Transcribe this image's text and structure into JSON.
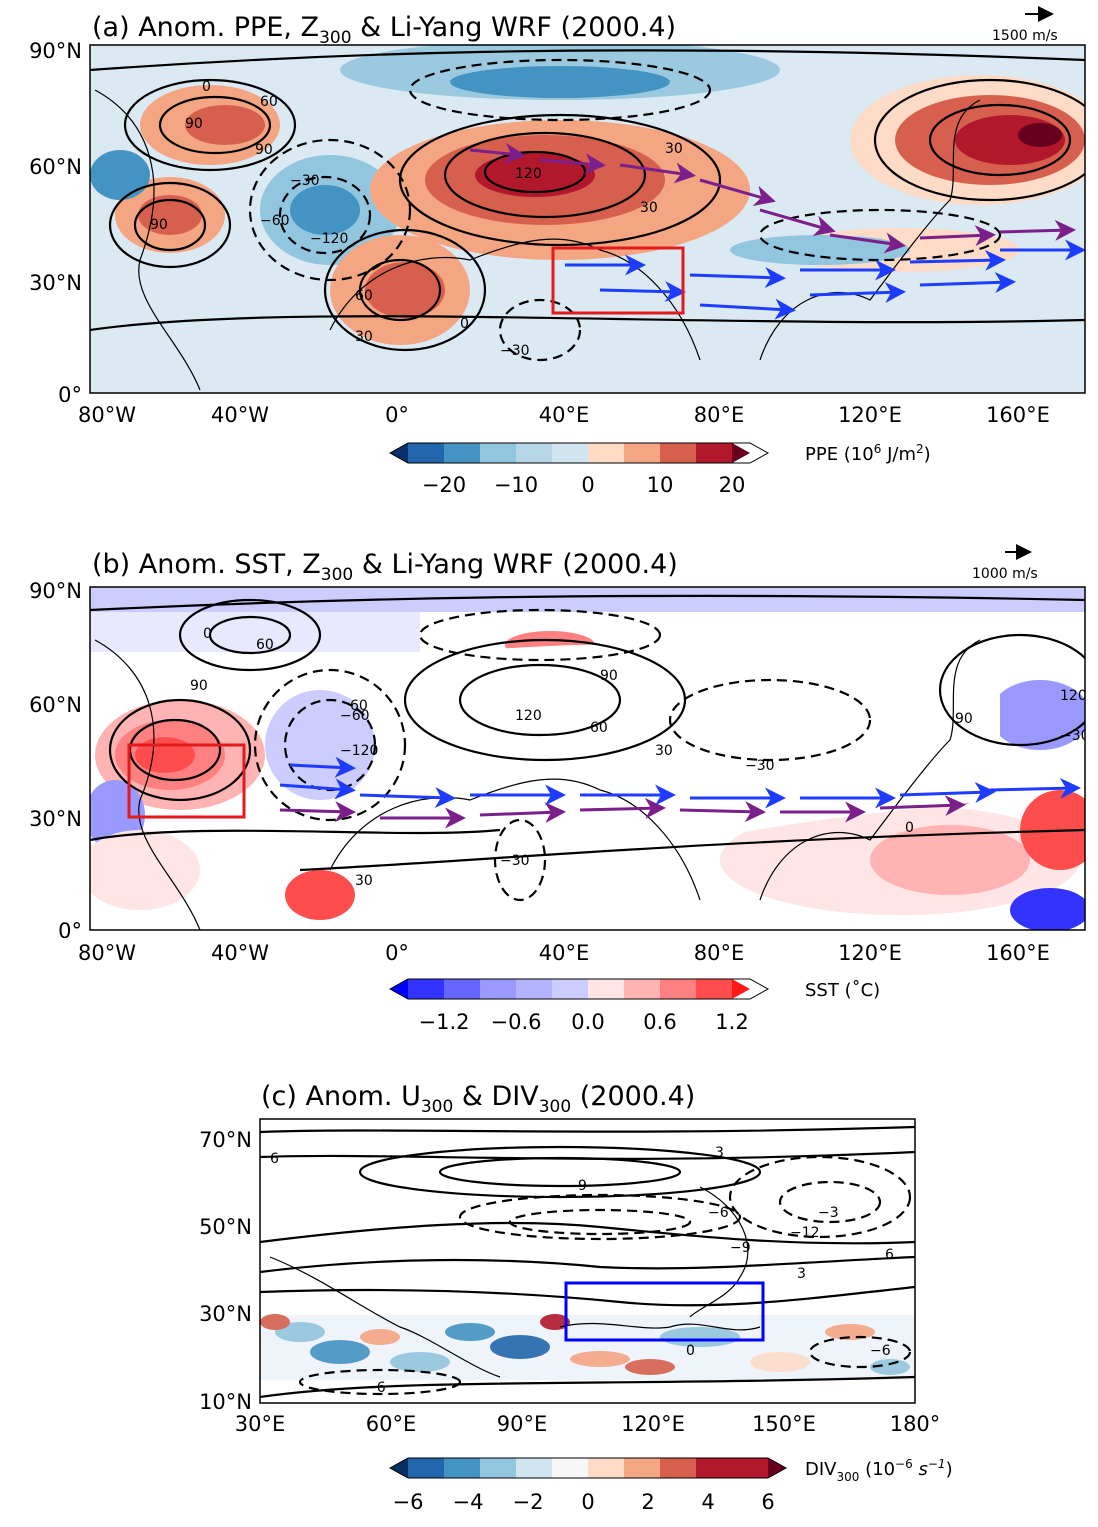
{
  "panels": [
    {
      "id": "a",
      "title": "(a) Anom. PPE, Z",
      "title_sub": "300",
      "title_rest": " & Li-Yang WRF (2000.4)",
      "ref_vector": "1500 m/s",
      "x_ticks": [
        "80°W",
        "40°W",
        "0°",
        "40°E",
        "80°E",
        "120°E",
        "160°E"
      ],
      "y_ticks": [
        "90°N",
        "60°N",
        "30°N",
        "0°"
      ],
      "box_color": "#e31a1c",
      "contour_labels": [
        "0",
        "30",
        "30",
        "60",
        "90",
        "90",
        "90",
        "120",
        "−30",
        "−60",
        "−120",
        "60",
        "30",
        "0",
        "−30"
      ],
      "colorbar": {
        "label": "PPE (10",
        "label_sup": "6",
        "label_rest": " J/m",
        "label_sup2": "2",
        "label_end": ")",
        "ticks": [
          "−20",
          "−10",
          "0",
          "10",
          "20"
        ],
        "colors": [
          "#08306b",
          "#2166ac",
          "#4393c3",
          "#92c5de",
          "#d1e5f0",
          "#fddbc7",
          "#f4a582",
          "#d6604d",
          "#b2182b",
          "#67001f"
        ]
      }
    },
    {
      "id": "b",
      "title": "(b) Anom. SST, Z",
      "title_sub": "300",
      "title_rest": " & Li-Yang WRF (2000.4)",
      "ref_vector": "1000 m/s",
      "x_ticks": [
        "80°W",
        "40°W",
        "0°",
        "40°E",
        "80°E",
        "120°E",
        "160°E"
      ],
      "y_ticks": [
        "90°N",
        "60°N",
        "30°N",
        "0°"
      ],
      "box_color": "#e31a1c",
      "contour_labels": [
        "0",
        "60",
        "90",
        "90",
        "60",
        "120",
        "60",
        "30",
        "0",
        "−30",
        "−60",
        "−120",
        "30",
        "−30",
        "90",
        "120",
        "−30"
      ],
      "colorbar": {
        "label": "SST (˚C)",
        "ticks": [
          "−1.2",
          "−0.6",
          "0.0",
          "0.6",
          "1.2"
        ],
        "colors": [
          "#0000ff",
          "#3333ff",
          "#6666ff",
          "#9999ff",
          "#ccccff",
          "#ffe5e5",
          "#ffb3b3",
          "#ff8080",
          "#ff4d4d",
          "#ff1a1a"
        ]
      }
    },
    {
      "id": "c",
      "title": "(c) Anom. U",
      "title_sub": "300",
      "title_mid": " & DIV",
      "title_sub2": "300",
      "title_rest": " (2000.4)",
      "x_ticks": [
        "30°E",
        "60°E",
        "90°E",
        "120°E",
        "150°E",
        "180°"
      ],
      "y_ticks": [
        "70°N",
        "50°N",
        "30°N",
        "10°N"
      ],
      "box_color": "#0000ff",
      "contour_labels": [
        "9",
        "6",
        "3",
        "−3",
        "−6",
        "−9",
        "−12",
        "6",
        "3",
        "−6",
        "0",
        "−6"
      ],
      "colorbar": {
        "label": "DIV",
        "label_sub": "300",
        "label_rest": " (10",
        "label_sup": "−6",
        "label_end": " s",
        "label_sup2": "−1",
        "label_close": ")",
        "ticks": [
          "−6",
          "−4",
          "−2",
          "0",
          "2",
          "4",
          "6"
        ],
        "colors": [
          "#053061",
          "#2166ac",
          "#4393c3",
          "#92c5de",
          "#d1e5f0",
          "#f7f7f7",
          "#fddbc7",
          "#f4a582",
          "#d6604d",
          "#b2182b",
          "#67001f"
        ]
      }
    }
  ],
  "chart_data": [
    {
      "type": "heatmap",
      "title": "(a) Anom. PPE, Z300 & Li-Yang WRF (2000.4)",
      "field": "PPE anomaly (10^6 J/m^2) filled; Z300 anomaly contours; wave-activity flux vectors",
      "x_range": [
        "80°W",
        "180°"
      ],
      "y_range": [
        "0°",
        "90°N"
      ],
      "colorbar_range": [
        -25,
        25
      ],
      "source_box": {
        "lon": [
          "40°E",
          "75°E"
        ],
        "lat": [
          "20°N",
          "37°N"
        ]
      },
      "z300_centers": [
        {
          "lon": -55,
          "lat": 63,
          "value": 90
        },
        {
          "lon": -60,
          "lat": 40,
          "value": 90
        },
        {
          "lon": -20,
          "lat": 45,
          "value": -120
        },
        {
          "lon": 15,
          "lat": 28,
          "value": 60
        },
        {
          "lon": 40,
          "lat": 55,
          "value": 120
        },
        {
          "lon": 150,
          "lat": 62,
          "value": 120
        },
        {
          "lon": 40,
          "lat": 12,
          "value": -30
        }
      ]
    },
    {
      "type": "heatmap",
      "title": "(b) Anom. SST, Z300 & Li-Yang WRF (2000.4)",
      "field": "SST anomaly (˚C) filled; Z300 anomaly contours; wave-activity flux vectors",
      "x_range": [
        "80°W",
        "180°"
      ],
      "y_range": [
        "0°",
        "90°N"
      ],
      "colorbar_range": [
        -1.5,
        1.5
      ],
      "source_box": {
        "lon": [
          "70°W",
          "40°W"
        ],
        "lat": [
          "30°N",
          "48°N"
        ]
      },
      "z300_centers": [
        {
          "lon": -55,
          "lat": 38,
          "value": 90
        },
        {
          "lon": -20,
          "lat": 40,
          "value": -120
        },
        {
          "lon": 35,
          "lat": 55,
          "value": 120
        },
        {
          "lon": 155,
          "lat": 60,
          "value": 120
        }
      ]
    },
    {
      "type": "heatmap",
      "title": "(c) Anom. U300 & DIV300 (2000.4)",
      "field": "DIV300 anomaly (10^-6 s^-1) filled; U300 anomaly contours",
      "x_range": [
        "30°E",
        "180°"
      ],
      "y_range": [
        "10°N",
        "75°N"
      ],
      "colorbar_range": [
        -6,
        6
      ],
      "source_box": {
        "lon": [
          "100°E",
          "145°E"
        ],
        "lat": [
          "24°N",
          "37°N"
        ]
      }
    }
  ]
}
